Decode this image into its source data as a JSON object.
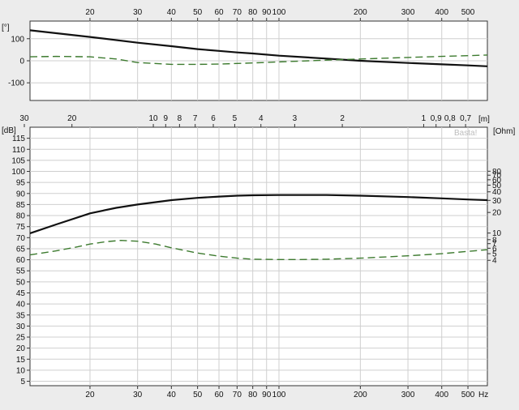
{
  "chart_data": [
    {
      "type": "line",
      "x_scale": "log",
      "xlim": [
        12,
        590
      ],
      "x_ticks": [
        20,
        30,
        40,
        50,
        60,
        70,
        80,
        90,
        100,
        200,
        300,
        400,
        500
      ],
      "x_tick_labels": [
        "20",
        "30",
        "40",
        "50",
        "60",
        "70",
        "80",
        "90",
        "100",
        "200",
        "300",
        "400",
        "500"
      ],
      "ylim": [
        -180,
        180
      ],
      "y_ticks": [
        100,
        0,
        -100
      ],
      "y_tick_labels": [
        "100",
        "0",
        "-100"
      ],
      "ylabel": "[°]",
      "grid": true,
      "series": [
        {
          "style": "solid",
          "color": "#111111",
          "x": [
            12,
            20,
            30,
            40,
            50,
            60,
            70,
            80,
            100,
            150,
            200,
            300,
            400,
            500,
            590
          ],
          "values": [
            138,
            108,
            82,
            66,
            53,
            45,
            38,
            33,
            23,
            10,
            0,
            -10,
            -16,
            -21,
            -25
          ]
        },
        {
          "style": "dashed",
          "color": "#3c7a2e",
          "x": [
            12,
            15,
            20,
            25,
            30,
            40,
            50,
            60,
            70,
            80,
            100,
            150,
            200,
            300,
            400,
            500,
            590
          ],
          "values": [
            18,
            20,
            18,
            8,
            -8,
            -16,
            -16,
            -15,
            -12,
            -10,
            -5,
            3,
            8,
            15,
            20,
            23,
            26
          ]
        }
      ]
    },
    {
      "type": "line",
      "x_scale": "log",
      "xlim": [
        12,
        590
      ],
      "x_ticks": [
        20,
        30,
        40,
        50,
        60,
        70,
        80,
        90,
        100,
        200,
        300,
        400,
        500
      ],
      "x_tick_labels": [
        "20",
        "30",
        "40",
        "50",
        "60",
        "70",
        "80",
        "90",
        "100",
        "200",
        "300",
        "400",
        "500"
      ],
      "x_unit": "Hz",
      "wavelength_ticks": [
        30,
        20,
        10,
        9,
        8,
        7,
        6,
        5,
        4,
        3,
        2,
        1,
        0.9,
        0.8,
        0.7
      ],
      "wavelength_tick_labels": [
        "30",
        "20",
        "10",
        "9",
        "8",
        "7",
        "6",
        "5",
        "4",
        "3",
        "2",
        "1",
        "0,9",
        "0,8",
        "0,7"
      ],
      "wavelength_unit": "[m]",
      "ylabel": "[dB]",
      "ylim": [
        3,
        120
      ],
      "y_ticks": [
        5,
        10,
        15,
        20,
        25,
        30,
        35,
        40,
        45,
        50,
        55,
        60,
        65,
        70,
        75,
        80,
        85,
        90,
        95,
        100,
        105,
        110,
        115
      ],
      "y_tick_labels": [
        "5",
        "10",
        "15",
        "20",
        "25",
        "30",
        "35",
        "40",
        "45",
        "50",
        "55",
        "60",
        "65",
        "70",
        "75",
        "80",
        "85",
        "90",
        "95",
        "100",
        "105",
        "110",
        "115"
      ],
      "y2label": "[Ohm]",
      "y2_scale": "log",
      "y2_ticks": [
        4,
        5,
        6,
        7,
        8,
        10,
        20,
        30,
        40,
        50,
        60,
        70,
        80
      ],
      "y2_tick_labels": [
        "4",
        "5",
        "6",
        "7",
        "8",
        "10",
        "20",
        "30",
        "40",
        "50",
        "60",
        "70",
        "80"
      ],
      "grid": true,
      "series": [
        {
          "style": "solid",
          "color": "#111111",
          "axis": "left",
          "x": [
            12,
            15,
            20,
            25,
            30,
            40,
            50,
            60,
            70,
            80,
            100,
            150,
            200,
            300,
            400,
            500,
            590
          ],
          "values": [
            72,
            76,
            81,
            83.5,
            85,
            87,
            88,
            88.6,
            89,
            89.2,
            89.3,
            89.3,
            89,
            88.4,
            87.8,
            87.3,
            87
          ]
        },
        {
          "style": "dashed",
          "color": "#3c7a2e",
          "axis": "right",
          "x": [
            12,
            15,
            18,
            20,
            23,
            26,
            30,
            35,
            40,
            50,
            60,
            70,
            80,
            100,
            120,
            150,
            200,
            300,
            400,
            500,
            590
          ],
          "values": [
            4.8,
            5.5,
            6.3,
            6.9,
            7.5,
            7.8,
            7.6,
            6.9,
            6.1,
            5.1,
            4.6,
            4.3,
            4.15,
            4.1,
            4.1,
            4.15,
            4.3,
            4.65,
            5.0,
            5.4,
            5.7
          ]
        }
      ]
    }
  ],
  "brand": "Basta!"
}
